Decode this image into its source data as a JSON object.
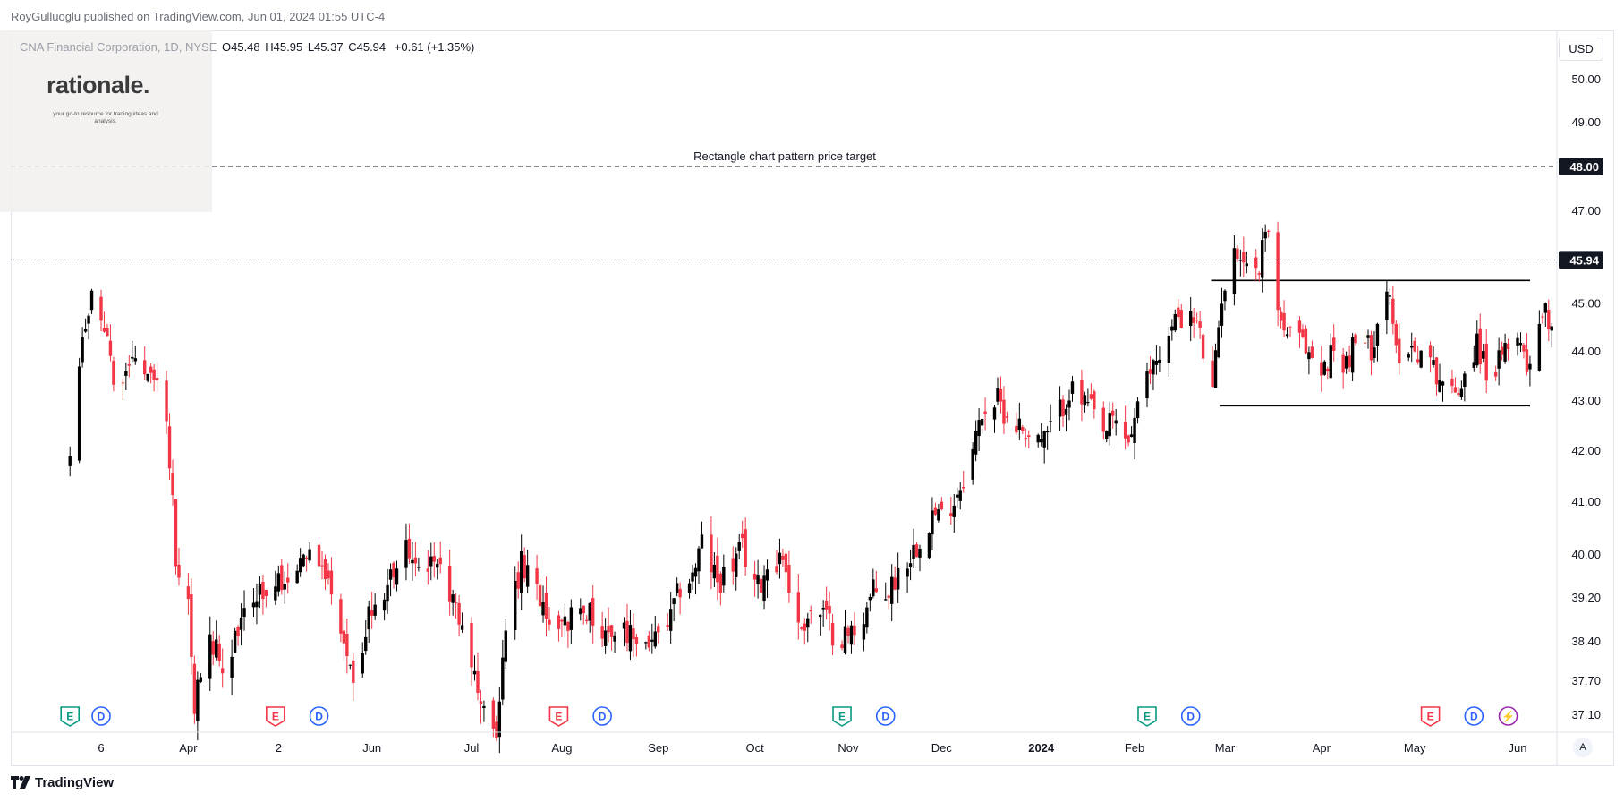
{
  "header": {
    "credit": "RoyGulluoglu published on TradingView.com, Jun 01, 2024 01:55 UTC-4"
  },
  "legend": {
    "symbol": "CNA Financial Corporation, 1D, NYSE",
    "open": "O45.48",
    "high": "H45.95",
    "low": "L45.37",
    "close": "C45.94",
    "change": "+0.61 (+1.35%)"
  },
  "logo": {
    "word": "rationale.",
    "tagline": "your go-to resource for trading ideas and analysis."
  },
  "currency": "USD",
  "auto_label": "A",
  "footer": {
    "brand": "TradingView"
  },
  "colors": {
    "up": "#000000",
    "down": "#f23645",
    "event_earnings_past": "#089981",
    "event_earnings_future": "#f23645",
    "event_dividend": "#2962ff",
    "event_split": "#9c27b0"
  },
  "chart_data": {
    "type": "candlestick",
    "symbol": "CNA",
    "timeframe": "1D",
    "exchange": "NYSE",
    "price_scale": "log",
    "y_ticks": [
      "50.00",
      "49.00",
      "47.00",
      "45.00",
      "44.00",
      "43.00",
      "42.00",
      "41.00",
      "40.00",
      "39.20",
      "38.40",
      "37.70",
      "37.10"
    ],
    "x_ticks": [
      {
        "label": "6",
        "date": "2023-03-06"
      },
      {
        "label": "Apr",
        "date": "2023-04-03"
      },
      {
        "label": "2",
        "date": "2023-05-02"
      },
      {
        "label": "Jun",
        "date": "2023-06-01"
      },
      {
        "label": "Jul",
        "date": "2023-07-03"
      },
      {
        "label": "Aug",
        "date": "2023-08-01"
      },
      {
        "label": "Sep",
        "date": "2023-09-01"
      },
      {
        "label": "Oct",
        "date": "2023-10-02"
      },
      {
        "label": "Nov",
        "date": "2023-11-01"
      },
      {
        "label": "Dec",
        "date": "2023-12-01"
      },
      {
        "label": "2024",
        "date": "2024-01-02",
        "bold": true
      },
      {
        "label": "Feb",
        "date": "2024-02-01"
      },
      {
        "label": "Mar",
        "date": "2024-03-01"
      },
      {
        "label": "Apr",
        "date": "2024-04-01"
      },
      {
        "label": "May",
        "date": "2024-05-01"
      },
      {
        "label": "Jun",
        "date": "2024-06-03"
      }
    ],
    "anchors": [
      [
        "2023-02-24",
        41.7
      ],
      [
        "2023-02-28",
        44.2
      ],
      [
        "2023-03-03",
        45.1
      ],
      [
        "2023-03-08",
        44.2
      ],
      [
        "2023-03-10",
        43.2
      ],
      [
        "2023-03-16",
        43.8
      ],
      [
        "2023-03-22",
        43.7
      ],
      [
        "2023-03-27",
        42.6
      ],
      [
        "2023-03-30",
        40.0
      ],
      [
        "2023-04-03",
        39.1
      ],
      [
        "2023-04-05",
        37.2
      ],
      [
        "2023-04-10",
        38.6
      ],
      [
        "2023-04-13",
        38.0
      ],
      [
        "2023-04-18",
        38.4
      ],
      [
        "2023-04-21",
        38.8
      ],
      [
        "2023-04-26",
        39.3
      ],
      [
        "2023-05-01",
        39.5
      ],
      [
        "2023-05-04",
        39.6
      ],
      [
        "2023-05-08",
        39.8
      ],
      [
        "2023-05-11",
        40.0
      ],
      [
        "2023-05-15",
        39.8
      ],
      [
        "2023-05-18",
        39.5
      ],
      [
        "2023-05-23",
        38.5
      ],
      [
        "2023-05-26",
        37.4
      ],
      [
        "2023-05-31",
        38.9
      ],
      [
        "2023-06-05",
        39.2
      ],
      [
        "2023-06-08",
        39.8
      ],
      [
        "2023-06-13",
        40.2
      ],
      [
        "2023-06-16",
        40.0
      ],
      [
        "2023-06-21",
        39.7
      ],
      [
        "2023-06-26",
        39.4
      ],
      [
        "2023-06-30",
        38.7
      ],
      [
        "2023-07-06",
        37.3
      ],
      [
        "2023-07-11",
        36.9
      ],
      [
        "2023-07-14",
        38.6
      ],
      [
        "2023-07-19",
        39.8
      ],
      [
        "2023-07-24",
        39.4
      ],
      [
        "2023-07-27",
        38.9
      ],
      [
        "2023-08-01",
        38.9
      ],
      [
        "2023-08-07",
        38.8
      ],
      [
        "2023-08-10",
        39.0
      ],
      [
        "2023-08-15",
        38.6
      ],
      [
        "2023-08-18",
        38.6
      ],
      [
        "2023-08-23",
        38.5
      ],
      [
        "2023-08-28",
        38.4
      ],
      [
        "2023-08-31",
        38.4
      ],
      [
        "2023-09-05",
        38.8
      ],
      [
        "2023-09-08",
        39.4
      ],
      [
        "2023-09-12",
        39.6
      ],
      [
        "2023-09-15",
        40.2
      ],
      [
        "2023-09-20",
        39.5
      ],
      [
        "2023-09-25",
        39.8
      ],
      [
        "2023-09-28",
        40.1
      ],
      [
        "2023-10-03",
        39.4
      ],
      [
        "2023-10-06",
        39.8
      ],
      [
        "2023-10-11",
        40.0
      ],
      [
        "2023-10-16",
        38.6
      ],
      [
        "2023-10-19",
        38.9
      ],
      [
        "2023-10-24",
        38.9
      ],
      [
        "2023-10-27",
        38.6
      ],
      [
        "2023-11-01",
        38.5
      ],
      [
        "2023-11-06",
        38.9
      ],
      [
        "2023-11-09",
        39.3
      ],
      [
        "2023-11-14",
        39.3
      ],
      [
        "2023-11-17",
        39.7
      ],
      [
        "2023-11-22",
        40.1
      ],
      [
        "2023-11-28",
        40.8
      ],
      [
        "2023-12-01",
        40.7
      ],
      [
        "2023-12-06",
        41.2
      ],
      [
        "2023-12-11",
        42.0
      ],
      [
        "2023-12-14",
        42.8
      ],
      [
        "2023-12-19",
        43.0
      ],
      [
        "2023-12-22",
        42.7
      ],
      [
        "2023-12-28",
        42.4
      ],
      [
        "2024-01-03",
        42.2
      ],
      [
        "2024-01-08",
        42.8
      ],
      [
        "2024-01-11",
        43.2
      ],
      [
        "2024-01-17",
        42.9
      ],
      [
        "2024-01-22",
        42.3
      ],
      [
        "2024-01-25",
        42.6
      ],
      [
        "2024-01-30",
        42.2
      ],
      [
        "2024-02-02",
        42.8
      ],
      [
        "2024-02-07",
        43.8
      ],
      [
        "2024-02-12",
        44.3
      ],
      [
        "2024-02-15",
        44.8
      ],
      [
        "2024-02-21",
        44.6
      ],
      [
        "2024-02-26",
        43.1
      ],
      [
        "2024-02-29",
        45.2
      ],
      [
        "2024-03-05",
        46.2
      ],
      [
        "2024-03-08",
        45.9
      ],
      [
        "2024-03-12",
        45.7
      ],
      [
        "2024-03-14",
        46.8
      ],
      [
        "2024-03-19",
        44.6
      ],
      [
        "2024-03-22",
        44.3
      ],
      [
        "2024-03-27",
        44.1
      ],
      [
        "2024-04-01",
        43.5
      ],
      [
        "2024-04-04",
        44.0
      ],
      [
        "2024-04-09",
        43.8
      ],
      [
        "2024-04-12",
        44.2
      ],
      [
        "2024-04-17",
        44.1
      ],
      [
        "2024-04-22",
        45.4
      ],
      [
        "2024-04-25",
        44.0
      ],
      [
        "2024-04-30",
        44.1
      ],
      [
        "2024-05-03",
        44.0
      ],
      [
        "2024-05-08",
        43.6
      ],
      [
        "2024-05-13",
        43.1
      ],
      [
        "2024-05-16",
        43.4
      ],
      [
        "2024-05-21",
        44.2
      ],
      [
        "2024-05-24",
        43.6
      ],
      [
        "2024-05-29",
        43.8
      ],
      [
        "2024-06-03",
        44.5
      ],
      [
        "2024-06-06",
        43.7
      ],
      [
        "2024-06-11",
        44.9
      ],
      [
        "2024-06-14",
        44.6
      ],
      [
        "2024-06-19",
        45.0
      ],
      [
        "2024-06-24",
        44.4
      ],
      [
        "2024-06-27",
        44.6
      ],
      [
        "2024-06-28",
        45.3
      ],
      [
        "2024-06-30",
        45.94
      ]
    ],
    "last": {
      "open": 45.48,
      "high": 45.95,
      "low": 45.37,
      "close": 45.94,
      "change": 0.61,
      "change_pct": 1.35
    },
    "price_label": "45.94",
    "target": {
      "price": 48.0,
      "label": "48.00",
      "text": "Rectangle chart pattern price target"
    },
    "rectangle": {
      "top": 45.5,
      "bottom": 42.9
    },
    "events": [
      {
        "type": "E",
        "date": "2023-02-24",
        "kind": "earnings_past"
      },
      {
        "type": "D",
        "date": "2023-03-06",
        "kind": "dividend"
      },
      {
        "type": "E",
        "date": "2023-05-01",
        "kind": "earnings_future"
      },
      {
        "type": "D",
        "date": "2023-05-15",
        "kind": "dividend"
      },
      {
        "type": "E",
        "date": "2023-07-31",
        "kind": "earnings_future"
      },
      {
        "type": "D",
        "date": "2023-08-14",
        "kind": "dividend"
      },
      {
        "type": "E",
        "date": "2023-10-30",
        "kind": "earnings_past"
      },
      {
        "type": "D",
        "date": "2023-11-13",
        "kind": "dividend"
      },
      {
        "type": "E",
        "date": "2024-02-05",
        "kind": "earnings_past"
      },
      {
        "type": "D",
        "date": "2024-02-19",
        "kind": "dividend"
      },
      {
        "type": "E",
        "date": "2024-05-06",
        "kind": "earnings_future"
      },
      {
        "type": "D",
        "date": "2024-05-20",
        "kind": "dividend"
      },
      {
        "type": "⚡",
        "date": "2024-05-31",
        "kind": "split"
      }
    ]
  }
}
